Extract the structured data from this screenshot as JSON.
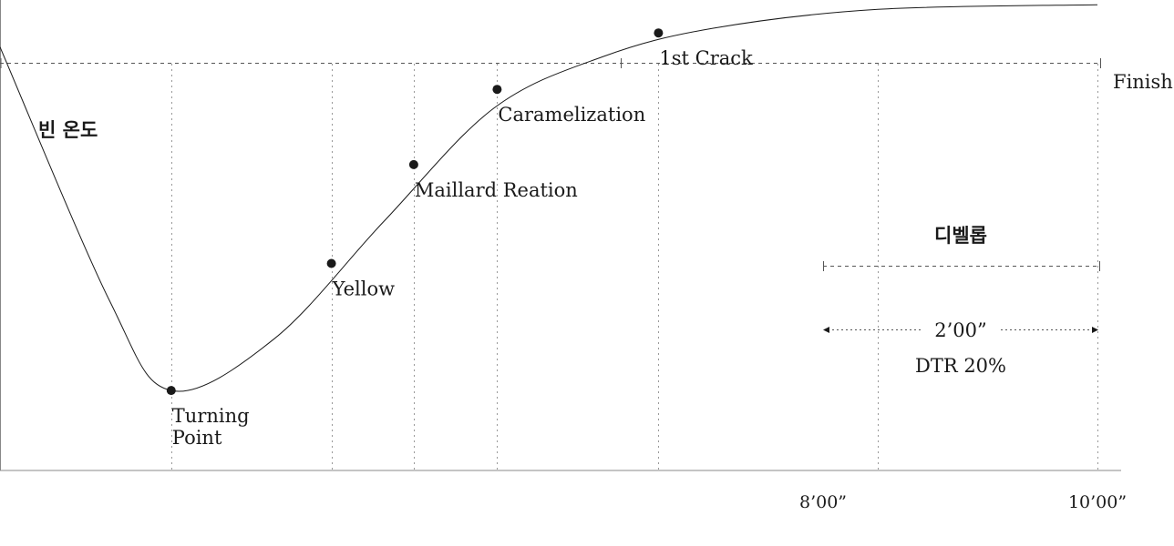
{
  "chart_data": {
    "type": "line",
    "title": "",
    "ylabel": "빈 온도",
    "xlabel": "",
    "grid": true,
    "x_tick_labels": [
      "8’00”",
      "10’00”"
    ],
    "series": [
      {
        "name": "",
        "color": "#1a1a1a",
        "points": [
          {
            "t": 0.0,
            "v": 0.9
          },
          {
            "t": 1.0,
            "v": 0.36
          },
          {
            "t": 1.56,
            "v": 0.17
          },
          {
            "t": 2.5,
            "v": 0.28
          },
          {
            "t": 3.5,
            "v": 0.53
          },
          {
            "t": 4.5,
            "v": 0.77
          },
          {
            "t": 5.5,
            "v": 0.88
          },
          {
            "t": 6.5,
            "v": 0.94
          },
          {
            "t": 8.0,
            "v": 0.98
          },
          {
            "t": 10.0,
            "v": 0.99
          }
        ]
      }
    ],
    "events": [
      {
        "name": "Turning",
        "name2": "Point",
        "t": 1.56,
        "v": 0.17
      },
      {
        "name": "Yellow",
        "t": 3.02,
        "v": 0.44
      },
      {
        "name": "Maillard Reation",
        "t": 3.77,
        "v": 0.65
      },
      {
        "name": "Caramelization",
        "t": 4.53,
        "v": 0.81
      },
      {
        "name": "1st Crack",
        "t": 6.0,
        "v": 0.93
      }
    ],
    "finish_label": "Finish",
    "development": {
      "label": "디벨롭",
      "duration": "2’00”",
      "dtr": "DTR 20%"
    }
  }
}
